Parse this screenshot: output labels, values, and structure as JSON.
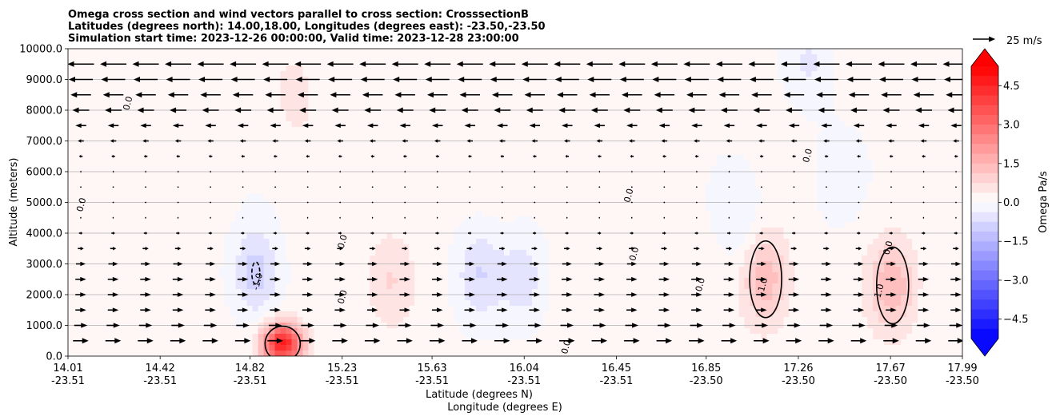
{
  "chart_data": {
    "type": "contourf",
    "title_lines": [
      "Omega cross section and wind vectors parallel to cross section: CrosssectionB",
      "Latitudes (degrees north): 14.00,18.00, Longitudes (degrees east): -23.50,-23.50",
      "Simulation start time: 2023-12-26 00:00:00, Valid time: 2023-12-28 23:00:00"
    ],
    "ylabel": "Altitude (meters)",
    "xlabel_lines": [
      "Latitude (degrees N)",
      "Longitude (degrees E)"
    ],
    "ylim": [
      0,
      10000
    ],
    "y_ticks": [
      "0.0",
      "1000.0",
      "2000.0",
      "3000.0",
      "4000.0",
      "5000.0",
      "6000.0",
      "7000.0",
      "8000.0",
      "9000.0",
      "10000.0"
    ],
    "x_ticks": [
      {
        "lat": "14.01",
        "lon": "-23.51"
      },
      {
        "lat": "14.42",
        "lon": "-23.51"
      },
      {
        "lat": "14.82",
        "lon": "-23.51"
      },
      {
        "lat": "15.23",
        "lon": "-23.51"
      },
      {
        "lat": "15.63",
        "lon": "-23.51"
      },
      {
        "lat": "16.04",
        "lon": "-23.51"
      },
      {
        "lat": "16.45",
        "lon": "-23.51"
      },
      {
        "lat": "16.85",
        "lon": "-23.50"
      },
      {
        "lat": "17.26",
        "lon": "-23.50"
      },
      {
        "lat": "17.67",
        "lon": "-23.50"
      },
      {
        "lat": "17.99",
        "lon": "-23.50"
      }
    ],
    "grid": "horizontal",
    "colorbar": {
      "label": "Omega Pa/s",
      "range": [
        -5.25,
        5.25
      ],
      "step": 0.375,
      "ticks": [
        "4.5",
        "3.0",
        "1.5",
        "0.0",
        "−1.5",
        "−3.0",
        "−4.5"
      ],
      "tick_values": [
        4.5,
        3.0,
        1.5,
        0.0,
        -1.5,
        -3.0,
        -4.5
      ],
      "extend": "both",
      "cmap": "bwr"
    },
    "quiver_key": {
      "label": "25 m/s",
      "speed": 25
    },
    "contour_labels": [
      "0.0",
      "1.0",
      "-1.0"
    ],
    "wind_profile": {
      "altitudes": [
        500,
        1000,
        1500,
        2000,
        2500,
        3000,
        3500,
        4000,
        4500,
        5000,
        5500,
        6000,
        6500,
        7000,
        7500,
        8000,
        8500,
        9000,
        9500
      ],
      "speed": [
        13,
        11,
        9,
        9,
        9,
        8,
        5,
        3,
        1,
        0,
        0,
        1,
        3,
        5,
        9,
        14,
        17,
        20,
        22
      ]
    },
    "features": [
      {
        "kind": "max",
        "x": 0.24,
        "alt": 400,
        "value": 4.5
      },
      {
        "kind": "max",
        "x": 0.78,
        "alt": 2500,
        "value": 1.3
      },
      {
        "kind": "max",
        "x": 0.922,
        "alt": 2300,
        "value": 1.3
      },
      {
        "kind": "max",
        "x": 0.36,
        "alt": 2500,
        "value": 0.6
      },
      {
        "kind": "max",
        "x": 0.255,
        "alt": 8500,
        "value": 0.4
      },
      {
        "kind": "min",
        "x": 0.21,
        "alt": 2700,
        "value": -1.1
      },
      {
        "kind": "min",
        "x": 0.46,
        "alt": 2700,
        "value": -0.8
      },
      {
        "kind": "min",
        "x": 0.51,
        "alt": 2500,
        "value": -0.7
      },
      {
        "kind": "min",
        "x": 0.75,
        "alt": 4500,
        "value": -0.5
      },
      {
        "kind": "min",
        "x": 0.83,
        "alt": 9500,
        "value": -0.5
      },
      {
        "kind": "min",
        "x": 0.86,
        "alt": 5800,
        "value": -0.4
      }
    ]
  }
}
